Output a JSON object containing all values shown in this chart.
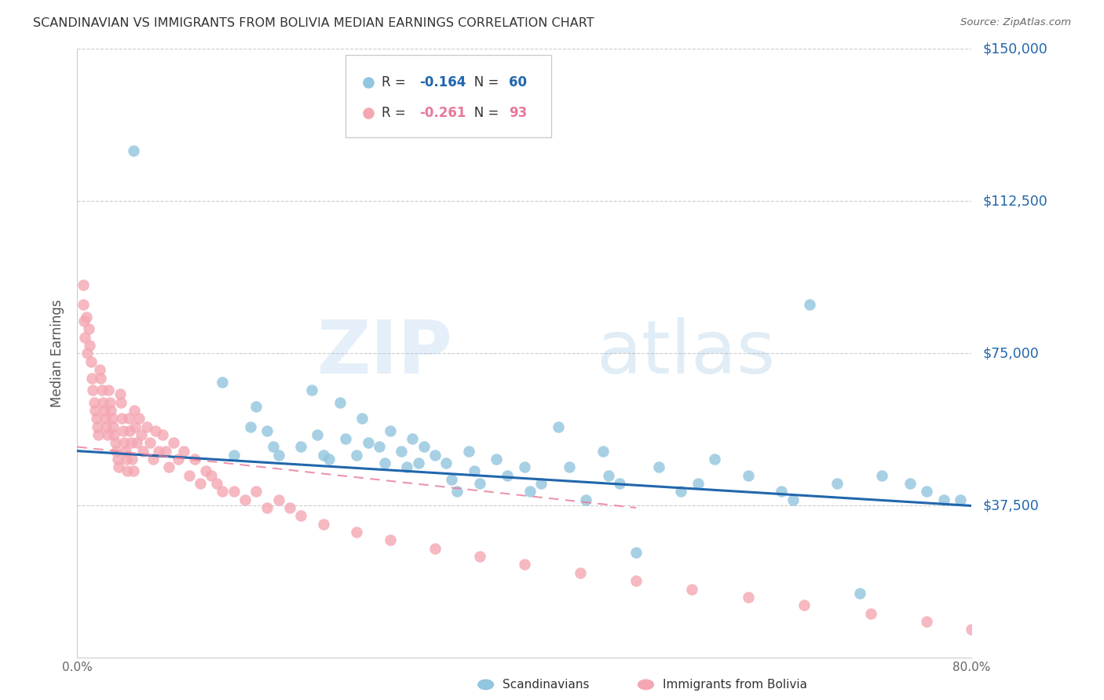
{
  "title": "SCANDINAVIAN VS IMMIGRANTS FROM BOLIVIA MEDIAN EARNINGS CORRELATION CHART",
  "source": "Source: ZipAtlas.com",
  "ylabel": "Median Earnings",
  "watermark_zip": "ZIP",
  "watermark_atlas": "atlas",
  "y_ticks": [
    0,
    37500,
    75000,
    112500,
    150000
  ],
  "y_tick_labels": [
    "",
    "$37,500",
    "$75,000",
    "$112,500",
    "$150,000"
  ],
  "xlim": [
    0.0,
    0.8
  ],
  "ylim": [
    0,
    150000
  ],
  "legend1_r": "-0.164",
  "legend1_n": "60",
  "legend2_r": "-0.261",
  "legend2_n": "93",
  "color_blue": "#92c5de",
  "color_pink": "#f4a7b2",
  "color_blue_dark": "#2166ac",
  "color_pink_dark": "#e8799a",
  "legend_label1": "Scandinavians",
  "legend_label2": "Immigrants from Bolivia",
  "blue_x": [
    0.05,
    0.13,
    0.14,
    0.155,
    0.16,
    0.17,
    0.175,
    0.18,
    0.2,
    0.21,
    0.215,
    0.22,
    0.225,
    0.235,
    0.24,
    0.25,
    0.255,
    0.26,
    0.27,
    0.275,
    0.28,
    0.29,
    0.295,
    0.3,
    0.305,
    0.31,
    0.32,
    0.33,
    0.335,
    0.34,
    0.35,
    0.355,
    0.36,
    0.375,
    0.385,
    0.4,
    0.405,
    0.415,
    0.43,
    0.44,
    0.455,
    0.47,
    0.475,
    0.485,
    0.5,
    0.52,
    0.54,
    0.555,
    0.57,
    0.6,
    0.63,
    0.64,
    0.655,
    0.68,
    0.7,
    0.72,
    0.745,
    0.76,
    0.775,
    0.79
  ],
  "blue_y": [
    125000,
    68000,
    50000,
    57000,
    62000,
    56000,
    52000,
    50000,
    52000,
    66000,
    55000,
    50000,
    49000,
    63000,
    54000,
    50000,
    59000,
    53000,
    52000,
    48000,
    56000,
    51000,
    47000,
    54000,
    48000,
    52000,
    50000,
    48000,
    44000,
    41000,
    51000,
    46000,
    43000,
    49000,
    45000,
    47000,
    41000,
    43000,
    57000,
    47000,
    39000,
    51000,
    45000,
    43000,
    26000,
    47000,
    41000,
    43000,
    49000,
    45000,
    41000,
    39000,
    87000,
    43000,
    16000,
    45000,
    43000,
    41000,
    39000,
    39000
  ],
  "pink_x": [
    0.005,
    0.005,
    0.006,
    0.007,
    0.008,
    0.009,
    0.01,
    0.011,
    0.012,
    0.013,
    0.014,
    0.015,
    0.016,
    0.017,
    0.018,
    0.019,
    0.02,
    0.021,
    0.022,
    0.023,
    0.024,
    0.025,
    0.026,
    0.027,
    0.028,
    0.029,
    0.03,
    0.031,
    0.032,
    0.033,
    0.034,
    0.035,
    0.036,
    0.037,
    0.038,
    0.039,
    0.04,
    0.041,
    0.042,
    0.043,
    0.044,
    0.045,
    0.046,
    0.047,
    0.048,
    0.049,
    0.05,
    0.051,
    0.052,
    0.053,
    0.055,
    0.057,
    0.059,
    0.062,
    0.065,
    0.068,
    0.07,
    0.073,
    0.076,
    0.079,
    0.082,
    0.086,
    0.09,
    0.095,
    0.1,
    0.105,
    0.11,
    0.115,
    0.12,
    0.125,
    0.13,
    0.14,
    0.15,
    0.16,
    0.17,
    0.18,
    0.19,
    0.2,
    0.22,
    0.25,
    0.28,
    0.32,
    0.36,
    0.4,
    0.45,
    0.5,
    0.55,
    0.6,
    0.65,
    0.71,
    0.76,
    0.8,
    0.82
  ],
  "pink_y": [
    92000,
    87000,
    83000,
    79000,
    84000,
    75000,
    81000,
    77000,
    73000,
    69000,
    66000,
    63000,
    61000,
    59000,
    57000,
    55000,
    71000,
    69000,
    66000,
    63000,
    61000,
    59000,
    57000,
    55000,
    66000,
    63000,
    61000,
    59000,
    57000,
    55000,
    53000,
    51000,
    49000,
    47000,
    65000,
    63000,
    59000,
    56000,
    53000,
    51000,
    49000,
    46000,
    59000,
    56000,
    53000,
    49000,
    46000,
    61000,
    57000,
    53000,
    59000,
    55000,
    51000,
    57000,
    53000,
    49000,
    56000,
    51000,
    55000,
    51000,
    47000,
    53000,
    49000,
    51000,
    45000,
    49000,
    43000,
    46000,
    45000,
    43000,
    41000,
    41000,
    39000,
    41000,
    37000,
    39000,
    37000,
    35000,
    33000,
    31000,
    29000,
    27000,
    25000,
    23000,
    21000,
    19000,
    17000,
    15000,
    13000,
    11000,
    9000,
    7000,
    5000
  ],
  "blue_trend_x": [
    0.0,
    0.8
  ],
  "blue_trend_y": [
    51000,
    37500
  ],
  "pink_trend_x": [
    0.0,
    0.5
  ],
  "pink_trend_y": [
    52000,
    37000
  ]
}
